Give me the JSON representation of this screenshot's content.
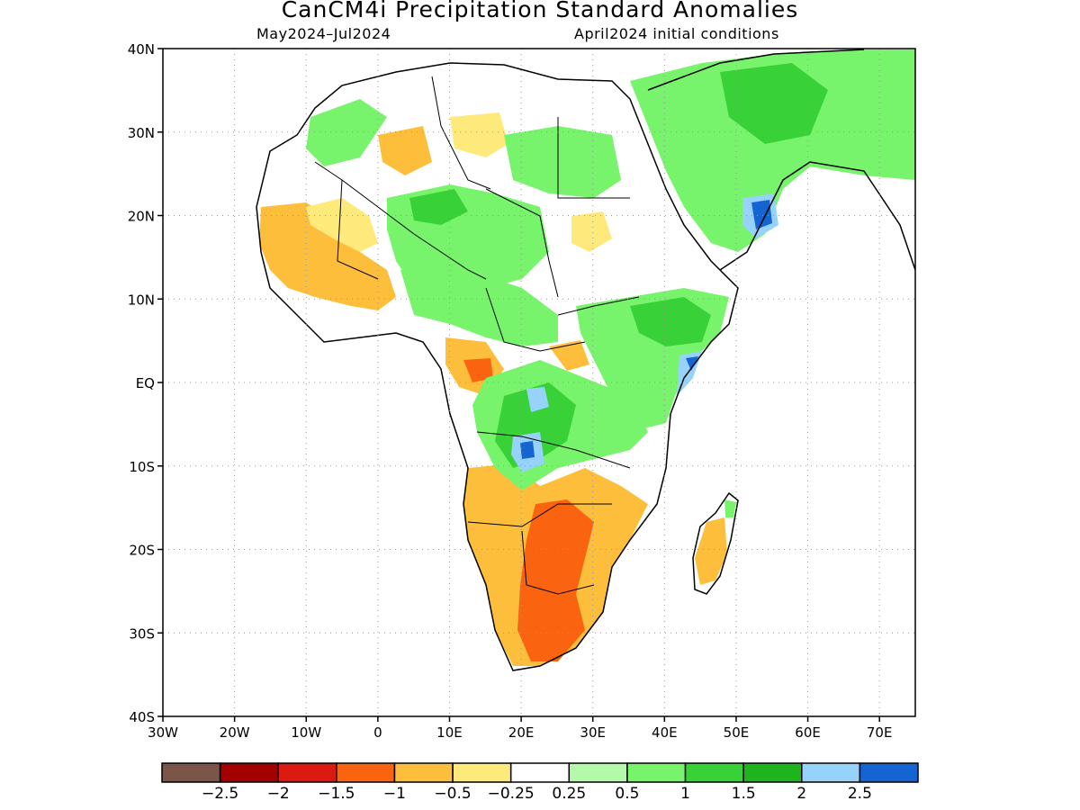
{
  "header": {
    "title": "CanCM4i Precipitation Standard Anomalies",
    "period": "May2024–Jul2024",
    "init": "April2024 initial conditions"
  },
  "map": {
    "lat_labels": [
      "40N",
      "30N",
      "20N",
      "10N",
      "EQ",
      "10S",
      "20S",
      "30S",
      "40S"
    ],
    "lon_labels": [
      "30W",
      "20W",
      "10W",
      "0",
      "10E",
      "20E",
      "30E",
      "40E",
      "50E",
      "60E",
      "70E"
    ],
    "lat_range": [
      -40,
      40
    ],
    "lon_range": [
      -30,
      75
    ],
    "grid": "dotted"
  },
  "colorbar": {
    "colors": [
      "#7a5548",
      "#a30000",
      "#dd1a12",
      "#fa6410",
      "#fdbe3c",
      "#feea7a",
      "#ffffff",
      "#b4f9aa",
      "#78f46c",
      "#38d238",
      "#1eb41e",
      "#96d2fa",
      "#1464d2"
    ],
    "labels": [
      "−2.5",
      "−2",
      "−1.5",
      "−1",
      "−0.5",
      "−0.25",
      "0.25",
      "0.5",
      "1",
      "1.5",
      "2",
      "2.5"
    ]
  }
}
